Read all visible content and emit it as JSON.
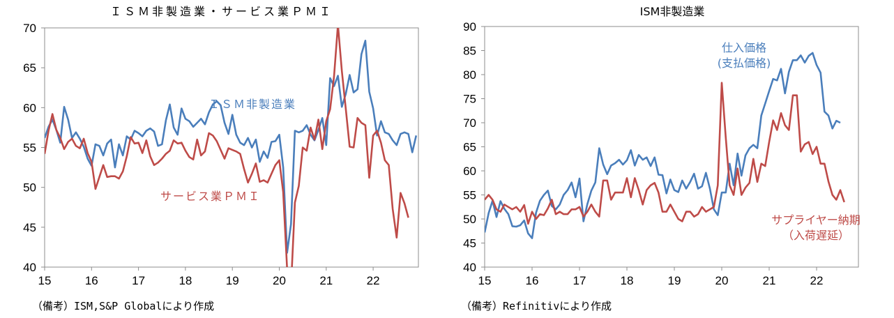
{
  "chart_data": [
    {
      "type": "line",
      "title": "ＩＳＭ非製造業・サービス業ＰＭＩ",
      "xlabel": "",
      "ylabel": "",
      "x_tick_labels": [
        "15",
        "16",
        "17",
        "18",
        "19",
        "20",
        "21",
        "22"
      ],
      "ylim": [
        40,
        70
      ],
      "y_ticks": [
        40,
        45,
        50,
        55,
        60,
        65,
        70
      ],
      "grid": false,
      "series": [
        {
          "name": "ＩＳＭ非製造業",
          "color": "#4a7ebb",
          "values": [
            56.2,
            57.6,
            58.5,
            57.2,
            55.6,
            60.1,
            58.5,
            56.2,
            56.9,
            56.1,
            55.1,
            53.6,
            52.7,
            55.4,
            55.2,
            54.0,
            55.5,
            56.0,
            52.5,
            55.4,
            54.0,
            56.4,
            56.0,
            57.1,
            56.8,
            56.4,
            57.1,
            57.4,
            57.0,
            55.2,
            55.4,
            58.4,
            60.4,
            57.5,
            56.6,
            59.9,
            58.6,
            58.3,
            57.6,
            58.1,
            58.6,
            57.9,
            59.4,
            60.4,
            60.8,
            60.3,
            58.1,
            56.7,
            59.1,
            56.6,
            55.6,
            55.3,
            56.2,
            55.0,
            56.0,
            53.2,
            54.5,
            53.7,
            55.7,
            55.8,
            56.6,
            52.5,
            41.8,
            45.4,
            57.1,
            56.9,
            57.1,
            57.8,
            56.6,
            55.9,
            57.2,
            58.7,
            55.3,
            63.7,
            62.7,
            64.0,
            60.1,
            61.7,
            64.1,
            61.9,
            62.3,
            66.7,
            68.4,
            62.0,
            59.9,
            56.5,
            58.3,
            56.9,
            56.7,
            55.9,
            55.3,
            56.7,
            56.9,
            56.7,
            54.4,
            56.5
          ],
          "note": "values approximate; series breaks below axis minimum near 2020"
        },
        {
          "name": "サービス業ＰＭＩ",
          "color": "#be4b48",
          "values": [
            54.2,
            57.1,
            59.2,
            57.2,
            56.2,
            54.8,
            55.7,
            56.1,
            55.2,
            54.9,
            56.1,
            54.3,
            53.2,
            49.8,
            51.3,
            52.8,
            51.3,
            51.4,
            51.4,
            51.1,
            52.0,
            53.9,
            56.3,
            55.5,
            55.6,
            54.3,
            55.9,
            53.9,
            52.8,
            53.1,
            53.6,
            54.2,
            54.6,
            55.9,
            55.5,
            55.6,
            54.6,
            53.8,
            53.5,
            56.0,
            54.0,
            54.5,
            56.8,
            56.5,
            55.8,
            54.7,
            53.6,
            54.9,
            54.7,
            54.5,
            54.2,
            52.3,
            50.6,
            51.7,
            53.0,
            50.7,
            50.9,
            50.6,
            51.7,
            52.8,
            53.4,
            49.4,
            39.8,
            37.5,
            48.1,
            50.2,
            55.0,
            54.6,
            57.5,
            56.0,
            58.5,
            54.8,
            58.3,
            59.8,
            63.9,
            70.4,
            64.6,
            59.9,
            55.1,
            55.0,
            58.7,
            58.1,
            57.8,
            51.2,
            56.5,
            57.1,
            55.6,
            53.4,
            52.8,
            47.3,
            43.7,
            49.3,
            48.0,
            46.2
          ],
          "note": "values approximate; dips below axis minimum in 2020"
        }
      ],
      "annotations": [
        "ＩＳＭ非製造業",
        "サービス業ＰＭＩ"
      ]
    },
    {
      "type": "line",
      "title": "ISM非製造業",
      "xlabel": "",
      "ylabel": "",
      "x_tick_labels": [
        "15",
        "16",
        "17",
        "18",
        "19",
        "20",
        "21",
        "22"
      ],
      "ylim": [
        40,
        90
      ],
      "y_ticks": [
        40,
        45,
        50,
        55,
        60,
        65,
        70,
        75,
        80,
        85,
        90
      ],
      "grid": false,
      "series": [
        {
          "name": "仕入価格\n(支払価格)",
          "color": "#4a7ebb",
          "values": [
            47.2,
            51.2,
            53.8,
            50.4,
            53.7,
            52.1,
            51.0,
            48.5,
            48.4,
            48.7,
            49.7,
            47.0,
            46.0,
            51.3,
            53.8,
            55.0,
            55.9,
            52.7,
            52.0,
            53.0,
            55.0,
            56.0,
            57.6,
            54.5,
            58.4,
            49.5,
            53.1,
            55.9,
            57.6,
            64.7,
            61.3,
            59.3,
            61.1,
            61.6,
            62.3,
            61.3,
            62.2,
            64.3,
            61.1,
            63.3,
            62.3,
            62.8,
            61.0,
            62.8,
            59.2,
            59.1,
            55.3,
            58.2,
            56.0,
            55.6,
            58.0,
            56.3,
            57.7,
            59.4,
            56.3,
            56.8,
            59.6,
            56.3,
            52.0,
            50.8,
            55.5,
            55.5,
            61.5,
            57.0,
            63.6,
            59.0,
            63.2,
            64.7,
            65.4,
            64.7,
            71.5,
            74.0,
            76.6,
            79.1,
            78.8,
            81.2,
            76.1,
            80.6,
            83.0,
            83.0,
            84.0,
            82.5,
            83.9,
            84.5,
            82.0,
            80.4,
            72.3,
            71.5,
            68.8,
            70.4,
            70.0
          ],
          "note": "values approximate"
        },
        {
          "name": "サプライヤー納期\n（入荷遅延）",
          "color": "#be4b48",
          "values": [
            54.0,
            55.0,
            54.0,
            52.0,
            51.5,
            53.0,
            52.5,
            52.0,
            52.5,
            51.5,
            52.9,
            49.0,
            51.5,
            50.0,
            51.0,
            50.8,
            52.2,
            54.0,
            51.0,
            51.5,
            51.0,
            51.0,
            52.0,
            52.0,
            52.5,
            50.5,
            51.5,
            53.0,
            51.5,
            50.5,
            58.0,
            58.0,
            54.0,
            55.5,
            55.5,
            55.5,
            58.5,
            54.5,
            58.5,
            56.0,
            53.0,
            56.0,
            57.0,
            57.5,
            55.5,
            51.5,
            51.5,
            53.0,
            51.5,
            50.0,
            49.5,
            51.5,
            51.5,
            50.5,
            51.0,
            52.5,
            51.5,
            52.0,
            52.5,
            57.0,
            78.3,
            67.0,
            57.0,
            55.0,
            60.5,
            55.0,
            56.5,
            57.5,
            62.5,
            57.7,
            61.5,
            61.0,
            66.0,
            70.5,
            68.5,
            72.0,
            69.5,
            68.5,
            75.7,
            75.7,
            64.0,
            65.5,
            66.0,
            63.5,
            65.0,
            61.5,
            61.5,
            57.8,
            55.0,
            54.0,
            56.0,
            53.5
          ],
          "note": "values approximate"
        }
      ],
      "annotations": [
        "仕入価格\n(支払価格)",
        "サプライヤー納期\n（入荷遅延）"
      ]
    }
  ],
  "notes": {
    "left": "（備考）ISM,S&P Globalにより作成",
    "right": "（備考）Refinitivにより作成"
  }
}
